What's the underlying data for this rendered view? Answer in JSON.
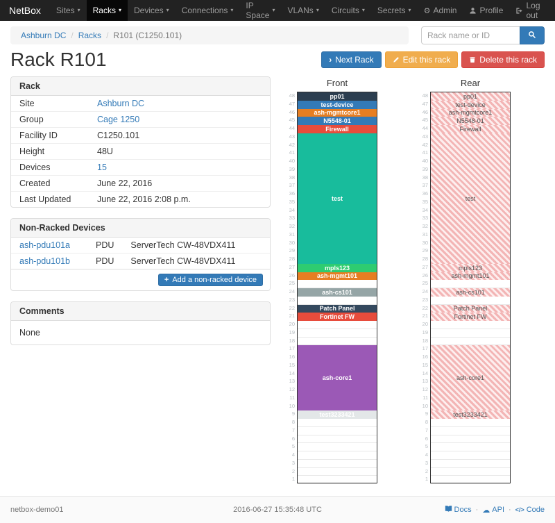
{
  "navbar": {
    "brand": "NetBox",
    "items": [
      {
        "label": "Sites"
      },
      {
        "label": "Racks",
        "active": true
      },
      {
        "label": "Devices"
      },
      {
        "label": "Connections"
      },
      {
        "label": "IP Space"
      },
      {
        "label": "VLANs"
      },
      {
        "label": "Circuits"
      },
      {
        "label": "Secrets"
      }
    ],
    "admin": "Admin",
    "profile": "Profile",
    "logout": "Log out"
  },
  "breadcrumb": {
    "site": "Ashburn DC",
    "section": "Racks",
    "current": "R101 (C1250.101)",
    "separator": "/"
  },
  "search": {
    "placeholder": "Rack name or ID"
  },
  "page": {
    "title": "Rack R101"
  },
  "actions": {
    "next": "Next Rack",
    "edit": "Edit this rack",
    "delete": "Delete this rack"
  },
  "rack_panel": {
    "title": "Rack",
    "rows": [
      {
        "label": "Site",
        "value": "Ashburn DC"
      },
      {
        "label": "Group",
        "value": "Cage 1250"
      },
      {
        "label": "Facility ID",
        "value": "C1250.101"
      },
      {
        "label": "Height",
        "value": "48U"
      },
      {
        "label": "Devices",
        "value": "15"
      },
      {
        "label": "Created",
        "value": "June 22, 2016"
      },
      {
        "label": "Last Updated",
        "value": "June 22, 2016 2:08 p.m."
      }
    ]
  },
  "nonracked": {
    "title": "Non-Racked Devices",
    "devices": [
      {
        "name": "ash-pdu101a",
        "role": "PDU",
        "type": "ServerTech CW-48VDX411"
      },
      {
        "name": "ash-pdu101b",
        "role": "PDU",
        "type": "ServerTech CW-48VDX411"
      }
    ],
    "add_label": "Add a non-racked device"
  },
  "comments": {
    "title": "Comments",
    "body": "None"
  },
  "elevation": {
    "front_title": "Front",
    "rear_title": "Rear",
    "units": 48,
    "devices": [
      {
        "name": "pp01",
        "top_u": 48,
        "height": 1,
        "color": "#2c3e50"
      },
      {
        "name": "test-device",
        "top_u": 47,
        "height": 1,
        "color": "#337ab7"
      },
      {
        "name": "ash-mgmtcore1",
        "top_u": 46,
        "height": 1,
        "color": "#e67e22"
      },
      {
        "name": "N5548-01",
        "top_u": 45,
        "height": 1,
        "color": "#337ab7"
      },
      {
        "name": "Firewall",
        "top_u": 44,
        "height": 1,
        "color": "#e74c3c"
      },
      {
        "name": "test",
        "top_u": 43,
        "height": 16,
        "color": "#18bc9c"
      },
      {
        "name": "mpls123",
        "top_u": 27,
        "height": 1,
        "color": "#2ecc71"
      },
      {
        "name": "ash-mgmt101",
        "top_u": 26,
        "height": 1,
        "color": "#e67e22"
      },
      {
        "name": "ash-cs101",
        "top_u": 24,
        "height": 1,
        "color": "#95a5a6"
      },
      {
        "name": "Patch Panel",
        "top_u": 22,
        "height": 1,
        "color": "#34495e"
      },
      {
        "name": "Fortinet FW",
        "top_u": 21,
        "height": 1,
        "color": "#e74c3c"
      },
      {
        "name": "ash-core1",
        "top_u": 17,
        "height": 8,
        "color": "#9b59b6"
      },
      {
        "name": "test3233421",
        "top_u": 9,
        "height": 1,
        "color": "#e3e7e8",
        "text_color": "#ffffff"
      }
    ]
  },
  "footer": {
    "hostname": "netbox-demo01",
    "timestamp": "2016-06-27 15:35:48 UTC",
    "docs": "Docs",
    "api": "API",
    "code": "Code"
  },
  "icons": {
    "caret": "▾",
    "gear": "⚙",
    "cloud": "☁",
    "chevron_right": "›",
    "plus": "+",
    "code": "</>",
    "dot": "·"
  }
}
